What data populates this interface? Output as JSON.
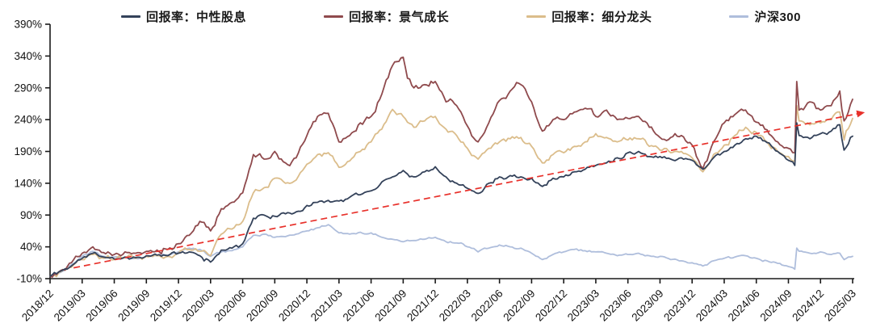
{
  "chart_data": {
    "type": "line",
    "title": "",
    "grid": false,
    "legend_position": "top",
    "y_axis": {
      "min": -10,
      "max": 390,
      "step": 50,
      "unit": "%",
      "tick_labels": [
        "390%",
        "340%",
        "290%",
        "240%",
        "190%",
        "140%",
        "90%",
        "40%",
        "-10%"
      ]
    },
    "x_axis": {
      "unit": "month",
      "tick_labels": [
        "2018/12",
        "2019/03",
        "2019/06",
        "2019/09",
        "2019/12",
        "2020/03",
        "2020/06",
        "2020/09",
        "2020/12",
        "2021/03",
        "2021/06",
        "2021/09",
        "2021/12",
        "2022/03",
        "2022/06",
        "2022/09",
        "2022/12",
        "2023/03",
        "2023/06",
        "2023/09",
        "2023/12",
        "2024/03",
        "2024/06",
        "2024/09",
        "2024/12",
        "2025/03"
      ]
    },
    "series": [
      {
        "name": "回报率：中性股息",
        "color": "#34425A",
        "points": [
          [
            0,
            -6
          ],
          [
            1,
            2
          ],
          [
            2,
            10
          ],
          [
            3,
            22
          ],
          [
            4,
            30
          ],
          [
            5,
            24
          ],
          [
            6,
            21
          ],
          [
            7,
            24
          ],
          [
            8,
            23
          ],
          [
            9,
            26
          ],
          [
            10,
            27
          ],
          [
            11,
            26
          ],
          [
            12,
            30
          ],
          [
            13,
            32
          ],
          [
            14,
            26
          ],
          [
            15,
            16
          ],
          [
            16,
            35
          ],
          [
            17,
            38
          ],
          [
            18,
            45
          ],
          [
            19,
            85
          ],
          [
            20,
            90
          ],
          [
            21,
            88
          ],
          [
            22,
            92
          ],
          [
            23,
            95
          ],
          [
            24,
            105
          ],
          [
            25,
            110
          ],
          [
            26,
            113
          ],
          [
            27,
            112
          ],
          [
            28,
            118
          ],
          [
            29,
            122
          ],
          [
            30,
            128
          ],
          [
            31,
            142
          ],
          [
            32,
            150
          ],
          [
            33,
            160
          ],
          [
            34,
            150
          ],
          [
            35,
            158
          ],
          [
            36,
            166
          ],
          [
            37,
            150
          ],
          [
            38,
            140
          ],
          [
            39,
            132
          ],
          [
            40,
            124
          ],
          [
            41,
            140
          ],
          [
            42,
            150
          ],
          [
            43,
            152
          ],
          [
            44,
            150
          ],
          [
            45,
            148
          ],
          [
            46,
            135
          ],
          [
            47,
            148
          ],
          [
            48,
            150
          ],
          [
            49,
            158
          ],
          [
            50,
            162
          ],
          [
            51,
            168
          ],
          [
            52,
            172
          ],
          [
            53,
            180
          ],
          [
            54,
            188
          ],
          [
            55,
            190
          ],
          [
            56,
            182
          ],
          [
            57,
            182
          ],
          [
            58,
            178
          ],
          [
            59,
            180
          ],
          [
            60,
            176
          ],
          [
            61,
            162
          ],
          [
            62,
            180
          ],
          [
            63,
            190
          ],
          [
            64,
            200
          ],
          [
            65,
            210
          ],
          [
            66,
            214
          ],
          [
            67,
            204
          ],
          [
            68,
            190
          ],
          [
            69,
            176
          ],
          [
            69.6,
            168
          ],
          [
            69.78,
            235
          ],
          [
            70,
            215
          ],
          [
            71,
            210
          ],
          [
            72,
            218
          ],
          [
            73,
            222
          ],
          [
            73.8,
            232
          ],
          [
            74.2,
            192
          ],
          [
            74.6,
            202
          ],
          [
            75,
            214
          ]
        ]
      },
      {
        "name": "回报率：景气成长",
        "color": "#8F4A4D",
        "points": [
          [
            0,
            -6
          ],
          [
            1,
            3
          ],
          [
            2,
            15
          ],
          [
            3,
            30
          ],
          [
            4,
            40
          ],
          [
            5,
            31
          ],
          [
            6,
            28
          ],
          [
            7,
            32
          ],
          [
            8,
            30
          ],
          [
            9,
            33
          ],
          [
            10,
            35
          ],
          [
            11,
            36
          ],
          [
            12,
            45
          ],
          [
            13,
            58
          ],
          [
            14,
            80
          ],
          [
            15,
            65
          ],
          [
            16,
            100
          ],
          [
            17,
            110
          ],
          [
            18,
            125
          ],
          [
            19,
            185
          ],
          [
            20,
            178
          ],
          [
            21,
            190
          ],
          [
            22,
            172
          ],
          [
            23,
            180
          ],
          [
            24,
            215
          ],
          [
            25,
            245
          ],
          [
            26,
            250
          ],
          [
            27,
            205
          ],
          [
            28,
            215
          ],
          [
            29,
            235
          ],
          [
            30,
            245
          ],
          [
            31,
            280
          ],
          [
            32,
            325
          ],
          [
            33,
            338
          ],
          [
            33.4,
            305
          ],
          [
            34,
            290
          ],
          [
            35,
            295
          ],
          [
            36,
            300
          ],
          [
            37,
            268
          ],
          [
            38,
            262
          ],
          [
            39,
            230
          ],
          [
            40,
            205
          ],
          [
            41,
            235
          ],
          [
            42,
            270
          ],
          [
            43,
            285
          ],
          [
            44,
            295
          ],
          [
            45,
            268
          ],
          [
            46,
            222
          ],
          [
            47,
            240
          ],
          [
            48,
            240
          ],
          [
            49,
            252
          ],
          [
            50,
            258
          ],
          [
            51,
            245
          ],
          [
            52,
            255
          ],
          [
            53,
            240
          ],
          [
            54,
            242
          ],
          [
            55,
            245
          ],
          [
            56,
            228
          ],
          [
            57,
            212
          ],
          [
            58,
            212
          ],
          [
            59,
            215
          ],
          [
            60,
            200
          ],
          [
            61,
            163
          ],
          [
            62,
            205
          ],
          [
            63,
            235
          ],
          [
            64,
            248
          ],
          [
            65,
            255
          ],
          [
            66,
            236
          ],
          [
            67,
            224
          ],
          [
            68,
            205
          ],
          [
            69,
            195
          ],
          [
            69.6,
            188
          ],
          [
            69.78,
            300
          ],
          [
            70,
            255
          ],
          [
            71,
            268
          ],
          [
            72,
            255
          ],
          [
            73,
            262
          ],
          [
            73.8,
            285
          ],
          [
            74.2,
            238
          ],
          [
            74.6,
            252
          ],
          [
            75,
            272
          ]
        ]
      },
      {
        "name": "回报率：细分龙头",
        "color": "#DBBD8B",
        "points": [
          [
            0,
            -6
          ],
          [
            1,
            1
          ],
          [
            2,
            8
          ],
          [
            3,
            20
          ],
          [
            4,
            28
          ],
          [
            5,
            22
          ],
          [
            6,
            20
          ],
          [
            7,
            23
          ],
          [
            8,
            22
          ],
          [
            9,
            25
          ],
          [
            10,
            26
          ],
          [
            11,
            25
          ],
          [
            12,
            30
          ],
          [
            13,
            36
          ],
          [
            14,
            33
          ],
          [
            15,
            26
          ],
          [
            16,
            60
          ],
          [
            17,
            68
          ],
          [
            18,
            80
          ],
          [
            19,
            125
          ],
          [
            20,
            133
          ],
          [
            21,
            148
          ],
          [
            22,
            140
          ],
          [
            23,
            145
          ],
          [
            24,
            170
          ],
          [
            25,
            185
          ],
          [
            26,
            188
          ],
          [
            27,
            165
          ],
          [
            28,
            175
          ],
          [
            29,
            190
          ],
          [
            30,
            205
          ],
          [
            31,
            225
          ],
          [
            32,
            256
          ],
          [
            33,
            245
          ],
          [
            34,
            228
          ],
          [
            35,
            238
          ],
          [
            36,
            245
          ],
          [
            37,
            225
          ],
          [
            38,
            215
          ],
          [
            39,
            195
          ],
          [
            40,
            178
          ],
          [
            41,
            195
          ],
          [
            42,
            205
          ],
          [
            43,
            210
          ],
          [
            44,
            212
          ],
          [
            45,
            198
          ],
          [
            46,
            172
          ],
          [
            47,
            185
          ],
          [
            48,
            188
          ],
          [
            49,
            198
          ],
          [
            50,
            205
          ],
          [
            51,
            218
          ],
          [
            52,
            212
          ],
          [
            53,
            205
          ],
          [
            54,
            208
          ],
          [
            55,
            210
          ],
          [
            56,
            198
          ],
          [
            57,
            192
          ],
          [
            58,
            188
          ],
          [
            59,
            190
          ],
          [
            60,
            180
          ],
          [
            61,
            158
          ],
          [
            62,
            185
          ],
          [
            63,
            200
          ],
          [
            64,
            215
          ],
          [
            65,
            228
          ],
          [
            66,
            220
          ],
          [
            67,
            205
          ],
          [
            68,
            190
          ],
          [
            69,
            182
          ],
          [
            69.6,
            175
          ],
          [
            69.78,
            262
          ],
          [
            70,
            238
          ],
          [
            71,
            232
          ],
          [
            72,
            235
          ],
          [
            73,
            240
          ],
          [
            73.8,
            252
          ],
          [
            74.2,
            208
          ],
          [
            74.6,
            226
          ],
          [
            75,
            242
          ]
        ]
      },
      {
        "name": "沪深300",
        "color": "#AFBEDC",
        "points": [
          [
            0,
            -6
          ],
          [
            1,
            0
          ],
          [
            2,
            12
          ],
          [
            3,
            25
          ],
          [
            4,
            33
          ],
          [
            5,
            25
          ],
          [
            6,
            24
          ],
          [
            7,
            23
          ],
          [
            8,
            22
          ],
          [
            9,
            25
          ],
          [
            10,
            26
          ],
          [
            11,
            27
          ],
          [
            12,
            32
          ],
          [
            13,
            38
          ],
          [
            14,
            36
          ],
          [
            15,
            25
          ],
          [
            16,
            32
          ],
          [
            17,
            34
          ],
          [
            18,
            40
          ],
          [
            19,
            58
          ],
          [
            20,
            60
          ],
          [
            21,
            55
          ],
          [
            22,
            56
          ],
          [
            23,
            60
          ],
          [
            24,
            65
          ],
          [
            25,
            70
          ],
          [
            26,
            75
          ],
          [
            27,
            62
          ],
          [
            28,
            60
          ],
          [
            29,
            63
          ],
          [
            30,
            62
          ],
          [
            31,
            55
          ],
          [
            32,
            52
          ],
          [
            33,
            48
          ],
          [
            34,
            50
          ],
          [
            35,
            52
          ],
          [
            36,
            55
          ],
          [
            37,
            48
          ],
          [
            38,
            46
          ],
          [
            39,
            40
          ],
          [
            40,
            32
          ],
          [
            41,
            38
          ],
          [
            42,
            43
          ],
          [
            43,
            40
          ],
          [
            44,
            38
          ],
          [
            45,
            30
          ],
          [
            46,
            20
          ],
          [
            47,
            28
          ],
          [
            48,
            32
          ],
          [
            49,
            36
          ],
          [
            50,
            34
          ],
          [
            51,
            32
          ],
          [
            52,
            30
          ],
          [
            53,
            26
          ],
          [
            54,
            28
          ],
          [
            55,
            30
          ],
          [
            56,
            26
          ],
          [
            57,
            25
          ],
          [
            58,
            20
          ],
          [
            59,
            18
          ],
          [
            60,
            15
          ],
          [
            61,
            10
          ],
          [
            62,
            18
          ],
          [
            63,
            22
          ],
          [
            64,
            24
          ],
          [
            65,
            26
          ],
          [
            66,
            22
          ],
          [
            67,
            18
          ],
          [
            68,
            14
          ],
          [
            69,
            9
          ],
          [
            69.6,
            5
          ],
          [
            69.78,
            38
          ],
          [
            70,
            33
          ],
          [
            71,
            30
          ],
          [
            72,
            32
          ],
          [
            73,
            28
          ],
          [
            73.8,
            30
          ],
          [
            74.2,
            20
          ],
          [
            74.6,
            24
          ],
          [
            75,
            25
          ]
        ]
      }
    ],
    "trend_line": {
      "description": "red dashed rising trend line with arrowhead",
      "color": "#E8312B",
      "style": "dashed",
      "arrow": true,
      "from_month_value": [
        2.2,
        7
      ],
      "to_month_value": [
        75.7,
        250
      ]
    }
  },
  "colors": {
    "axis": "#1a1a1a",
    "tick_text": "#111111",
    "background": "#ffffff"
  }
}
